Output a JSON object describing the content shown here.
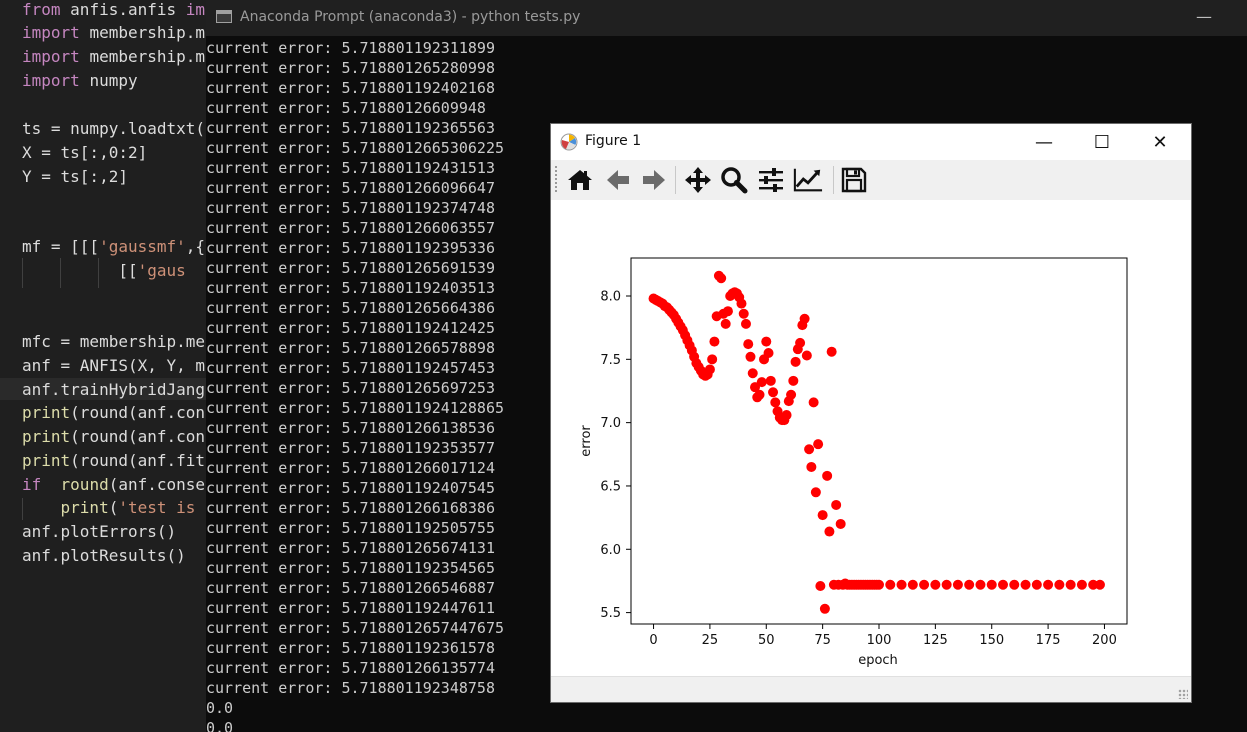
{
  "editor": {
    "lines": [
      {
        "tokens": [
          [
            "kw",
            "from"
          ],
          [
            "",
            "anfis.anfis "
          ],
          [
            "kw",
            "im"
          ]
        ]
      },
      {
        "tokens": [
          [
            "kw",
            "import"
          ],
          [
            "",
            "membership.m"
          ]
        ]
      },
      {
        "tokens": [
          [
            "kw",
            "import"
          ],
          [
            "",
            "membership.m"
          ]
        ]
      },
      {
        "tokens": [
          [
            "kw",
            "import"
          ],
          [
            "",
            "numpy"
          ]
        ]
      },
      {
        "tokens": []
      },
      {
        "tokens": [
          [
            "",
            "ts = numpy.loadtxt("
          ]
        ]
      },
      {
        "tokens": [
          [
            "",
            "X = ts[:,0:2]"
          ]
        ]
      },
      {
        "tokens": [
          [
            "",
            "Y = ts[:,2]"
          ]
        ]
      },
      {
        "tokens": []
      },
      {
        "tokens": []
      },
      {
        "tokens": [
          [
            "",
            "mf = [[["
          ],
          [
            "str",
            "'gaussmf'"
          ],
          [
            "",
            ",{"
          ]
        ]
      },
      {
        "tokens": [
          [
            "",
            "          [["
          ],
          [
            "str",
            "'gaus"
          ]
        ]
      },
      {
        "tokens": []
      },
      {
        "tokens": []
      },
      {
        "tokens": [
          [
            "",
            "mfc = membership.me"
          ]
        ]
      },
      {
        "tokens": [
          [
            "",
            "anf = ANFIS(X, Y, m"
          ]
        ]
      },
      {
        "tokens": [
          [
            "",
            "anf.trainHybridJang"
          ]
        ]
      },
      {
        "tokens": [
          [
            "fn",
            "print"
          ],
          [
            "",
            "(round(anf.con"
          ]
        ]
      },
      {
        "tokens": [
          [
            "fn",
            "print"
          ],
          [
            "",
            "(round(anf.con"
          ]
        ]
      },
      {
        "tokens": [
          [
            "fn",
            "print"
          ],
          [
            "",
            "(round(anf.fit"
          ]
        ]
      },
      {
        "tokens": [
          [
            "kw",
            "if"
          ],
          [
            "",
            ""
          ],
          [
            "fn",
            " round"
          ],
          [
            "",
            "(anf.conseq"
          ]
        ]
      },
      {
        "tokens": [
          [
            "",
            "    "
          ],
          [
            "fn",
            "print"
          ],
          [
            "",
            "("
          ],
          [
            "str",
            "'test is"
          ]
        ]
      },
      {
        "tokens": [
          [
            "",
            "anf.plotErrors()"
          ]
        ]
      },
      {
        "tokens": [
          [
            "",
            "anf.plotResults()"
          ]
        ]
      }
    ]
  },
  "terminal": {
    "title": "Anaconda Prompt (anaconda3) - python  tests.py",
    "minimize": "—",
    "lines": [
      "current error: 5.718801192311899",
      "current error: 5.718801265280998",
      "current error: 5.718801192402168",
      "current error: 5.71880126609948",
      "current error: 5.718801192365563",
      "current error: 5.7188012665306225",
      "current error: 5.718801192431513",
      "current error: 5.718801266096647",
      "current error: 5.718801192374748",
      "current error: 5.718801266063557",
      "current error: 5.718801192395336",
      "current error: 5.718801265691539",
      "current error: 5.718801192403513",
      "current error: 5.718801265664386",
      "current error: 5.718801192412425",
      "current error: 5.718801266578898",
      "current error: 5.718801192457453",
      "current error: 5.718801265697253",
      "current error: 5.7188011924128865",
      "current error: 5.718801266138536",
      "current error: 5.718801192353577",
      "current error: 5.718801266017124",
      "current error: 5.718801192407545",
      "current error: 5.718801266168386",
      "current error: 5.718801192505755",
      "current error: 5.718801265674131",
      "current error: 5.718801192354565",
      "current error: 5.718801266546887",
      "current error: 5.718801192447611",
      "current error: 5.7188012657447675",
      "current error: 5.718801192361578",
      "current error: 5.718801266135774",
      "current error: 5.718801192348758",
      "0.0",
      "0.0"
    ]
  },
  "figure": {
    "title": "Figure 1",
    "win_minimize": "—",
    "win_maximize": "☐",
    "win_close": "✕",
    "toolbar": {
      "home": "home-icon",
      "back": "back-arrow-icon",
      "forward": "forward-arrow-icon",
      "pan": "pan-icon",
      "zoom": "zoom-icon",
      "subplots": "subplots-icon",
      "axes": "edit-axes-icon",
      "save": "save-icon"
    },
    "colors": {
      "marker": "#ff0000"
    }
  },
  "chart_data": {
    "type": "scatter",
    "title": "",
    "xlabel": "epoch",
    "ylabel": "error",
    "xlim": [
      -10,
      210
    ],
    "ylim": [
      5.41,
      8.3
    ],
    "xticks": [
      0,
      25,
      50,
      75,
      100,
      125,
      150,
      175,
      200
    ],
    "yticks": [
      5.5,
      6.0,
      6.5,
      7.0,
      7.5,
      8.0
    ],
    "ytick_labels": [
      "5.5",
      "6.0",
      "6.5",
      "7.0",
      "7.5",
      "8.0"
    ],
    "grid": false,
    "series": [
      {
        "color": "#ff0000",
        "x": [
          0,
          1,
          2,
          3,
          4,
          5,
          6,
          7,
          8,
          9,
          10,
          11,
          12,
          13,
          14,
          15,
          16,
          17,
          18,
          19,
          20,
          21,
          22,
          23,
          24,
          25,
          26,
          27,
          28,
          29,
          30,
          31,
          32,
          33,
          34,
          35,
          36,
          37,
          38,
          39,
          40,
          41,
          42,
          43,
          44,
          45,
          46,
          47,
          48,
          49,
          50,
          51,
          52,
          53,
          54,
          55,
          56,
          57,
          58,
          59,
          60,
          61,
          62,
          63,
          64,
          65,
          66,
          67,
          68,
          69,
          70,
          71,
          72,
          73,
          74,
          75,
          76,
          77,
          78,
          79,
          80,
          81,
          82,
          83,
          84,
          85,
          86,
          87,
          88,
          89,
          90,
          91,
          92,
          93,
          94,
          95,
          96,
          97,
          98,
          99,
          100,
          105,
          110,
          115,
          120,
          125,
          130,
          135,
          140,
          145,
          150,
          155,
          160,
          165,
          170,
          175,
          180,
          185,
          190,
          195,
          198
        ],
        "y": [
          7.98,
          7.97,
          7.96,
          7.95,
          7.94,
          7.92,
          7.91,
          7.89,
          7.87,
          7.85,
          7.82,
          7.79,
          7.76,
          7.73,
          7.69,
          7.65,
          7.61,
          7.57,
          7.52,
          7.47,
          7.44,
          7.41,
          7.38,
          7.37,
          7.38,
          7.42,
          7.5,
          7.64,
          7.84,
          8.16,
          8.14,
          7.86,
          7.78,
          7.88,
          8.0,
          8.02,
          8.03,
          8.02,
          7.99,
          7.94,
          7.86,
          7.78,
          7.62,
          7.52,
          7.39,
          7.28,
          7.2,
          7.22,
          7.32,
          7.5,
          7.64,
          7.55,
          7.33,
          7.24,
          7.16,
          7.09,
          7.04,
          7.02,
          7.02,
          7.06,
          7.17,
          7.22,
          7.33,
          7.48,
          7.58,
          7.63,
          7.77,
          7.82,
          7.53,
          6.79,
          6.65,
          7.16,
          6.45,
          6.83,
          5.71,
          6.27,
          5.53,
          6.58,
          6.14,
          7.56,
          5.72,
          6.35,
          5.72,
          6.2,
          5.72,
          5.73,
          5.72,
          5.72,
          5.72,
          5.72,
          5.72,
          5.72,
          5.72,
          5.72,
          5.72,
          5.72,
          5.72,
          5.72,
          5.72,
          5.72,
          5.72,
          5.72,
          5.72,
          5.72,
          5.72,
          5.72,
          5.72,
          5.72,
          5.72,
          5.72,
          5.72,
          5.72,
          5.72,
          5.72,
          5.72,
          5.72,
          5.72,
          5.72,
          5.72,
          5.72,
          5.72
        ]
      }
    ]
  }
}
